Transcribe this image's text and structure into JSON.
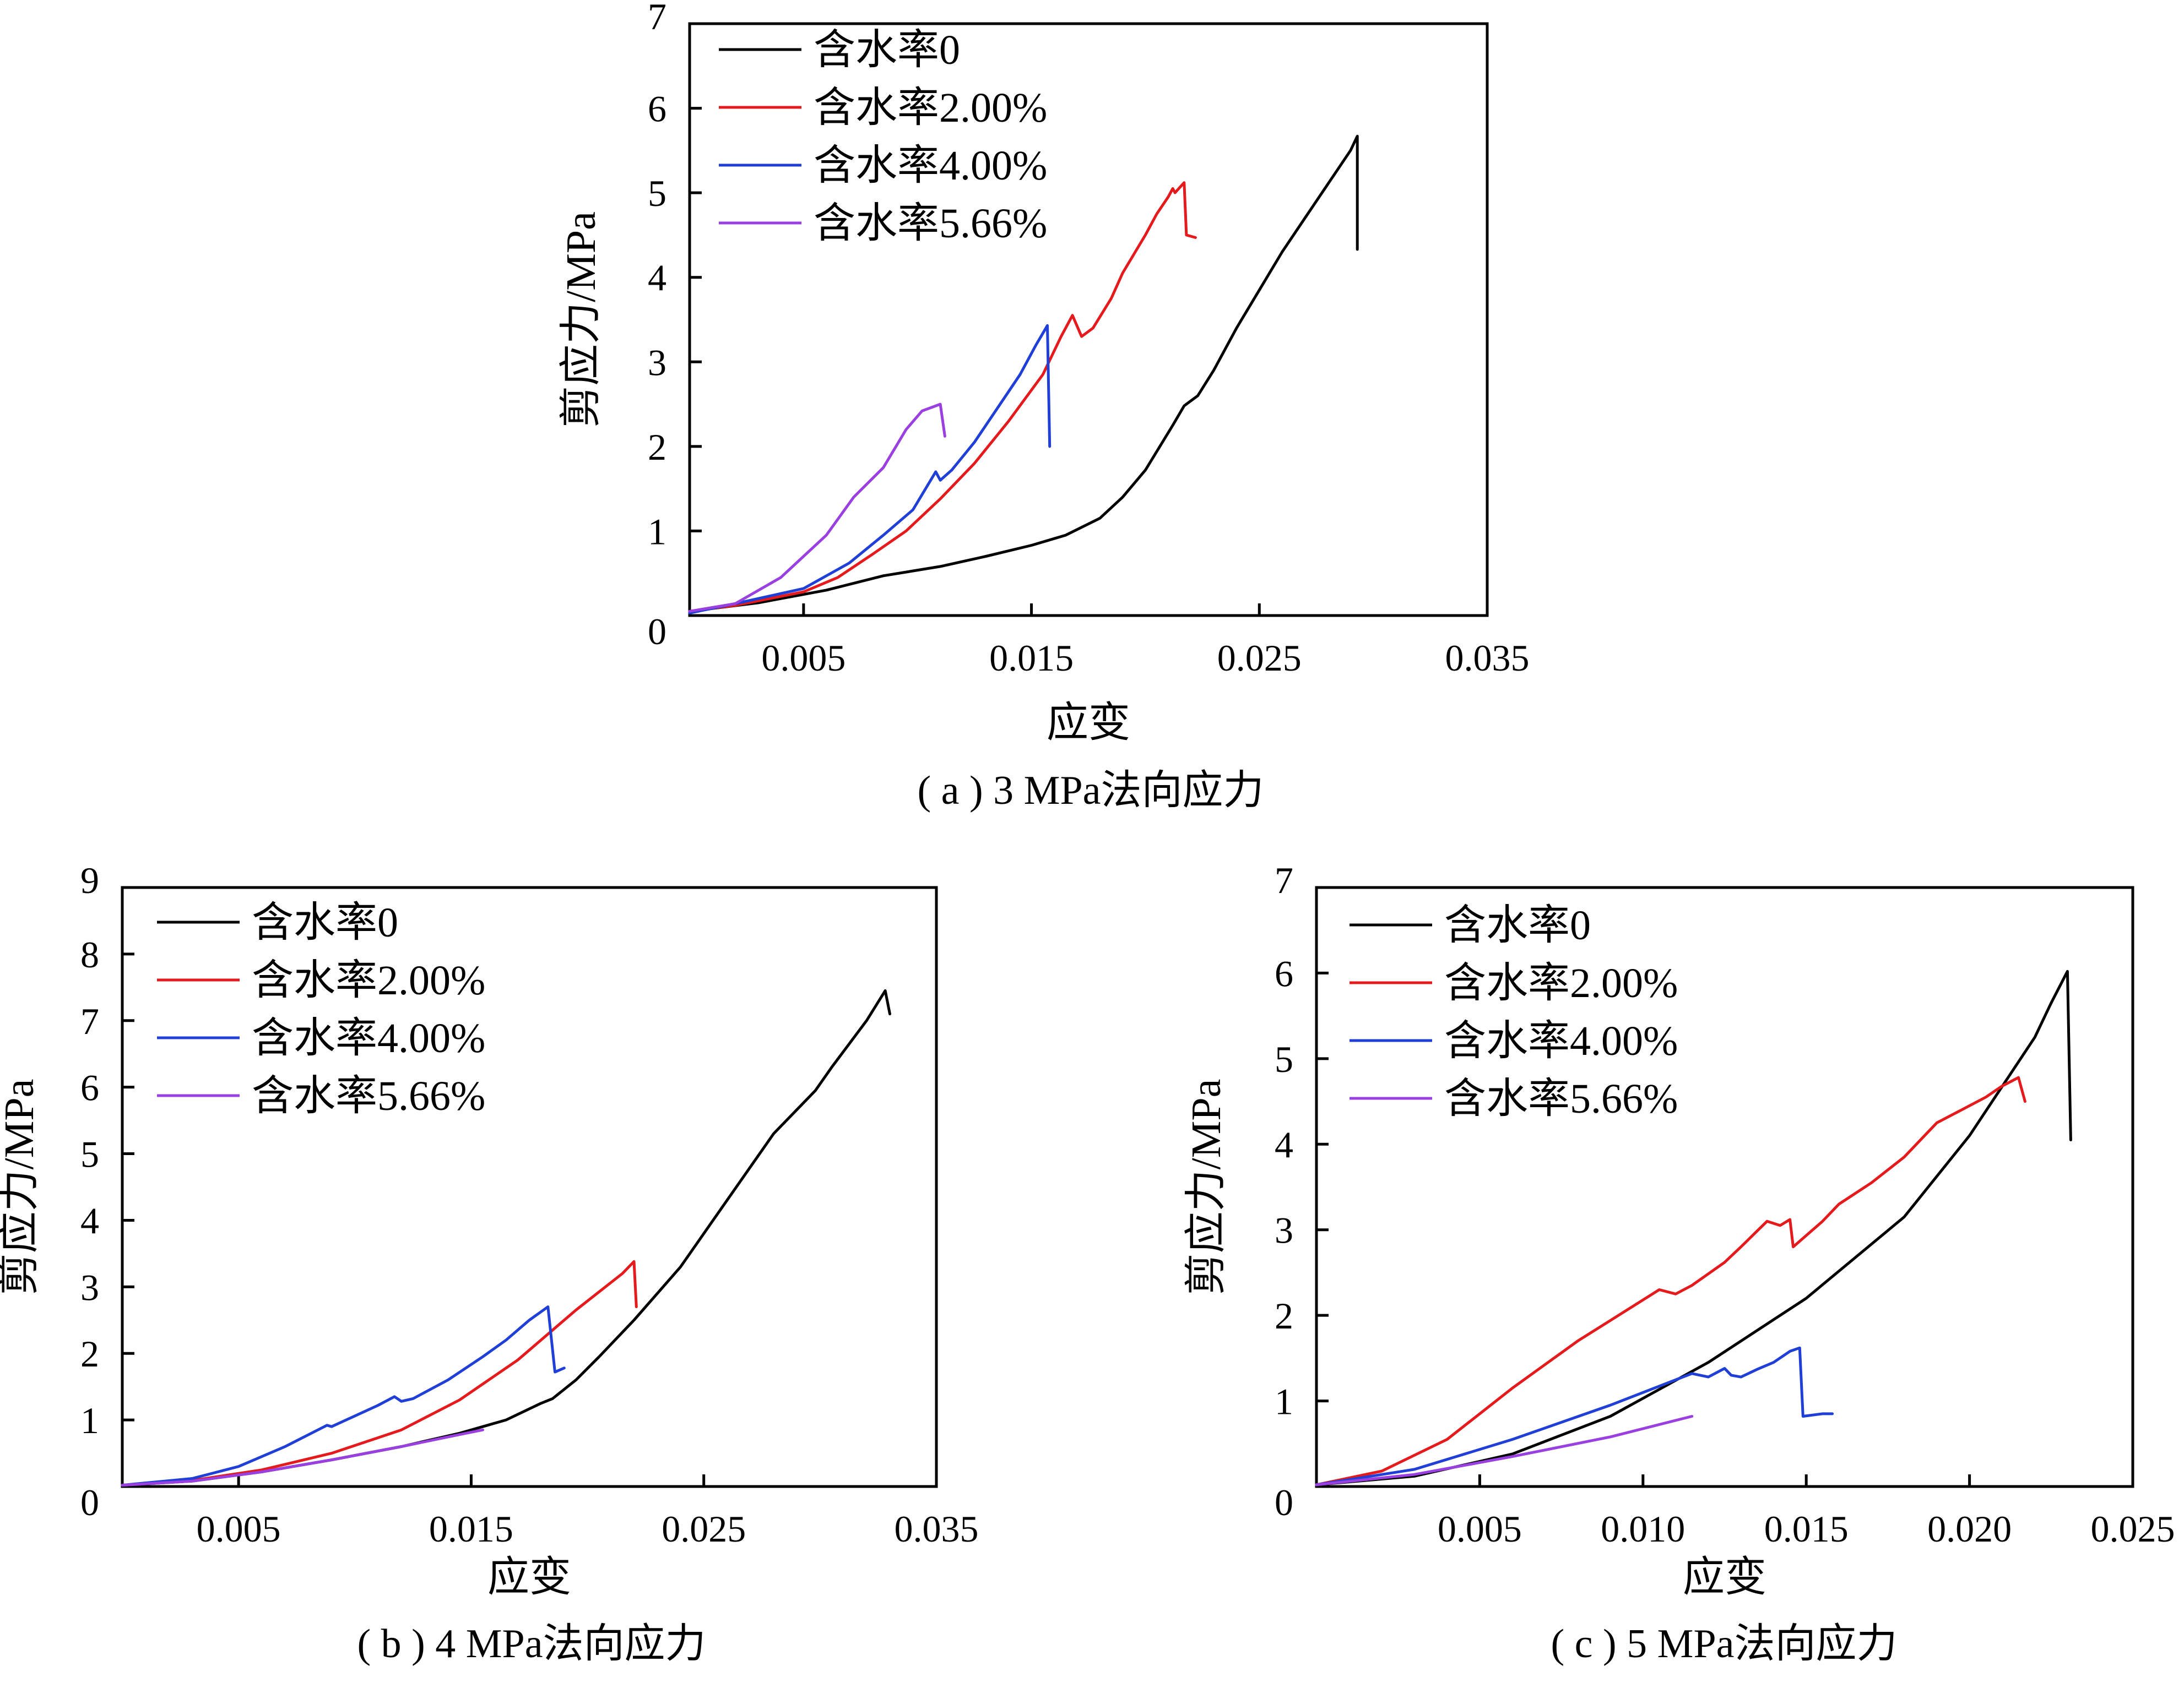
{
  "figure": {
    "legend_labels": [
      "含水率0",
      "含水率2.00%",
      "含水率4.00%",
      "含水率5.66%"
    ],
    "series_colors": [
      "#000000",
      "#e41a1c",
      "#1f3fd6",
      "#9a3fe0"
    ]
  },
  "chart_data": [
    {
      "type": "line",
      "caption": "( a ) 3 MPa法向应力",
      "xlabel": "应变",
      "ylabel": "剪应力/MPa",
      "xlim": [
        0,
        0.035
      ],
      "ylim": [
        0,
        7
      ],
      "xticks": [
        "0.005",
        "0.015",
        "0.025",
        "0.035"
      ],
      "yticks": [
        "0",
        "1",
        "2",
        "3",
        "4",
        "5",
        "6",
        "7"
      ],
      "legend_position": "top-left",
      "series": [
        {
          "name": "含水率0",
          "color": "#000000",
          "points": [
            [
              0,
              0.05
            ],
            [
              0.003,
              0.15
            ],
            [
              0.006,
              0.3
            ],
            [
              0.0085,
              0.47
            ],
            [
              0.011,
              0.58
            ],
            [
              0.013,
              0.7
            ],
            [
              0.015,
              0.83
            ],
            [
              0.0165,
              0.95
            ],
            [
              0.018,
              1.15
            ],
            [
              0.019,
              1.4
            ],
            [
              0.02,
              1.72
            ],
            [
              0.0212,
              2.25
            ],
            [
              0.0217,
              2.48
            ],
            [
              0.0223,
              2.6
            ],
            [
              0.023,
              2.9
            ],
            [
              0.024,
              3.4
            ],
            [
              0.025,
              3.85
            ],
            [
              0.026,
              4.3
            ],
            [
              0.027,
              4.7
            ],
            [
              0.028,
              5.1
            ],
            [
              0.029,
              5.5
            ],
            [
              0.0293,
              5.67
            ],
            [
              0.0293,
              4.33
            ]
          ]
        },
        {
          "name": "含水率2.00%",
          "color": "#e41a1c",
          "points": [
            [
              0,
              0.05
            ],
            [
              0.002,
              0.12
            ],
            [
              0.005,
              0.28
            ],
            [
              0.0065,
              0.45
            ],
            [
              0.008,
              0.72
            ],
            [
              0.0095,
              1.0
            ],
            [
              0.011,
              1.38
            ],
            [
              0.0125,
              1.8
            ],
            [
              0.014,
              2.3
            ],
            [
              0.0155,
              2.85
            ],
            [
              0.0163,
              3.3
            ],
            [
              0.0168,
              3.55
            ],
            [
              0.0172,
              3.3
            ],
            [
              0.0177,
              3.4
            ],
            [
              0.0185,
              3.75
            ],
            [
              0.019,
              4.05
            ],
            [
              0.02,
              4.5
            ],
            [
              0.0205,
              4.75
            ],
            [
              0.021,
              4.95
            ],
            [
              0.0212,
              5.05
            ],
            [
              0.0213,
              5.0
            ],
            [
              0.0217,
              5.12
            ],
            [
              0.0218,
              4.5
            ],
            [
              0.0222,
              4.47
            ]
          ]
        },
        {
          "name": "含水率4.00%",
          "color": "#1f3fd6",
          "points": [
            [
              0,
              0.03
            ],
            [
              0.002,
              0.14
            ],
            [
              0.005,
              0.32
            ],
            [
              0.007,
              0.62
            ],
            [
              0.0085,
              0.95
            ],
            [
              0.0098,
              1.25
            ],
            [
              0.0108,
              1.7
            ],
            [
              0.011,
              1.6
            ],
            [
              0.0115,
              1.72
            ],
            [
              0.0125,
              2.05
            ],
            [
              0.0135,
              2.45
            ],
            [
              0.0145,
              2.85
            ],
            [
              0.0152,
              3.2
            ],
            [
              0.0157,
              3.43
            ],
            [
              0.0158,
              2.0
            ]
          ]
        },
        {
          "name": "含水率5.66%",
          "color": "#9a3fe0",
          "points": [
            [
              0,
              0.05
            ],
            [
              0.002,
              0.14
            ],
            [
              0.004,
              0.45
            ],
            [
              0.006,
              0.95
            ],
            [
              0.0072,
              1.4
            ],
            [
              0.0085,
              1.75
            ],
            [
              0.0095,
              2.2
            ],
            [
              0.0102,
              2.42
            ],
            [
              0.011,
              2.5
            ],
            [
              0.0112,
              2.12
            ]
          ]
        }
      ]
    },
    {
      "type": "line",
      "caption": "( b ) 4 MPa法向应力",
      "xlabel": "应变",
      "ylabel": "剪应力/MPa",
      "xlim": [
        0,
        0.035
      ],
      "ylim": [
        0,
        9
      ],
      "xticks": [
        "0.005",
        "0.015",
        "0.025",
        "0.035"
      ],
      "yticks": [
        "0",
        "1",
        "2",
        "3",
        "4",
        "5",
        "6",
        "7",
        "8",
        "9"
      ],
      "legend_position": "top-left",
      "series": [
        {
          "name": "含水率0",
          "color": "#000000",
          "points": [
            [
              0,
              0.02
            ],
            [
              0.003,
              0.08
            ],
            [
              0.006,
              0.22
            ],
            [
              0.009,
              0.4
            ],
            [
              0.012,
              0.6
            ],
            [
              0.0145,
              0.8
            ],
            [
              0.0165,
              1.0
            ],
            [
              0.018,
              1.25
            ],
            [
              0.0185,
              1.32
            ],
            [
              0.0195,
              1.6
            ],
            [
              0.0205,
              1.95
            ],
            [
              0.022,
              2.5
            ],
            [
              0.024,
              3.3
            ],
            [
              0.026,
              4.3
            ],
            [
              0.028,
              5.3
            ],
            [
              0.0298,
              5.95
            ],
            [
              0.0305,
              6.3
            ],
            [
              0.032,
              7.0
            ],
            [
              0.0328,
              7.45
            ],
            [
              0.033,
              7.1
            ]
          ]
        },
        {
          "name": "含水率2.00%",
          "color": "#e41a1c",
          "points": [
            [
              0,
              0.02
            ],
            [
              0.003,
              0.09
            ],
            [
              0.006,
              0.25
            ],
            [
              0.009,
              0.5
            ],
            [
              0.012,
              0.85
            ],
            [
              0.0145,
              1.3
            ],
            [
              0.017,
              1.9
            ],
            [
              0.0195,
              2.65
            ],
            [
              0.0215,
              3.2
            ],
            [
              0.022,
              3.38
            ],
            [
              0.0221,
              2.7
            ]
          ]
        },
        {
          "name": "含水率4.00%",
          "color": "#1f3fd6",
          "points": [
            [
              0,
              0.02
            ],
            [
              0.003,
              0.12
            ],
            [
              0.005,
              0.3
            ],
            [
              0.007,
              0.6
            ],
            [
              0.0088,
              0.92
            ],
            [
              0.009,
              0.9
            ],
            [
              0.0095,
              0.98
            ],
            [
              0.011,
              1.22
            ],
            [
              0.0117,
              1.35
            ],
            [
              0.012,
              1.28
            ],
            [
              0.0125,
              1.32
            ],
            [
              0.014,
              1.6
            ],
            [
              0.0155,
              1.95
            ],
            [
              0.0165,
              2.2
            ],
            [
              0.0175,
              2.5
            ],
            [
              0.0183,
              2.7
            ],
            [
              0.0186,
              1.72
            ],
            [
              0.019,
              1.78
            ]
          ]
        },
        {
          "name": "含水率5.66%",
          "color": "#9a3fe0",
          "points": [
            [
              0,
              0.02
            ],
            [
              0.003,
              0.08
            ],
            [
              0.006,
              0.22
            ],
            [
              0.009,
              0.4
            ],
            [
              0.012,
              0.6
            ],
            [
              0.0145,
              0.78
            ],
            [
              0.0155,
              0.85
            ]
          ]
        }
      ]
    },
    {
      "type": "line",
      "caption": "( c ) 5 MPa法向应力",
      "xlabel": "应变",
      "ylabel": "剪应力/MPa",
      "xlim": [
        0,
        0.025
      ],
      "ylim": [
        0,
        7
      ],
      "xticks": [
        "0.005",
        "0.010",
        "0.015",
        "0.020",
        "0.025"
      ],
      "yticks": [
        "0",
        "1",
        "2",
        "3",
        "4",
        "5",
        "6",
        "7"
      ],
      "legend_position": "top-left",
      "series": [
        {
          "name": "含水率0",
          "color": "#000000",
          "points": [
            [
              0,
              0.02
            ],
            [
              0.003,
              0.12
            ],
            [
              0.006,
              0.38
            ],
            [
              0.009,
              0.82
            ],
            [
              0.012,
              1.45
            ],
            [
              0.015,
              2.2
            ],
            [
              0.018,
              3.15
            ],
            [
              0.02,
              4.1
            ],
            [
              0.022,
              5.25
            ],
            [
              0.0225,
              5.65
            ],
            [
              0.023,
              6.02
            ],
            [
              0.0231,
              4.05
            ]
          ]
        },
        {
          "name": "含水率2.00%",
          "color": "#e41a1c",
          "points": [
            [
              0,
              0.02
            ],
            [
              0.002,
              0.18
            ],
            [
              0.004,
              0.55
            ],
            [
              0.006,
              1.15
            ],
            [
              0.008,
              1.7
            ],
            [
              0.0105,
              2.3
            ],
            [
              0.011,
              2.25
            ],
            [
              0.0115,
              2.35
            ],
            [
              0.0125,
              2.62
            ],
            [
              0.013,
              2.8
            ],
            [
              0.0138,
              3.1
            ],
            [
              0.0142,
              3.05
            ],
            [
              0.0145,
              3.12
            ],
            [
              0.0146,
              2.8
            ],
            [
              0.0155,
              3.1
            ],
            [
              0.016,
              3.3
            ],
            [
              0.017,
              3.55
            ],
            [
              0.018,
              3.85
            ],
            [
              0.019,
              4.25
            ],
            [
              0.0195,
              4.35
            ],
            [
              0.0205,
              4.55
            ],
            [
              0.021,
              4.68
            ],
            [
              0.0215,
              4.78
            ],
            [
              0.0217,
              4.5
            ]
          ]
        },
        {
          "name": "含水率4.00%",
          "color": "#1f3fd6",
          "points": [
            [
              0,
              0.02
            ],
            [
              0.003,
              0.2
            ],
            [
              0.006,
              0.55
            ],
            [
              0.009,
              0.95
            ],
            [
              0.0115,
              1.32
            ],
            [
              0.012,
              1.28
            ],
            [
              0.0125,
              1.38
            ],
            [
              0.0127,
              1.3
            ],
            [
              0.013,
              1.28
            ],
            [
              0.0135,
              1.37
            ],
            [
              0.014,
              1.45
            ],
            [
              0.0145,
              1.58
            ],
            [
              0.0148,
              1.62
            ],
            [
              0.0149,
              0.82
            ],
            [
              0.0155,
              0.85
            ],
            [
              0.0158,
              0.85
            ]
          ]
        },
        {
          "name": "含水率5.66%",
          "color": "#9a3fe0",
          "points": [
            [
              0,
              0.02
            ],
            [
              0.003,
              0.14
            ],
            [
              0.006,
              0.35
            ],
            [
              0.009,
              0.58
            ],
            [
              0.0115,
              0.82
            ]
          ]
        }
      ]
    }
  ]
}
